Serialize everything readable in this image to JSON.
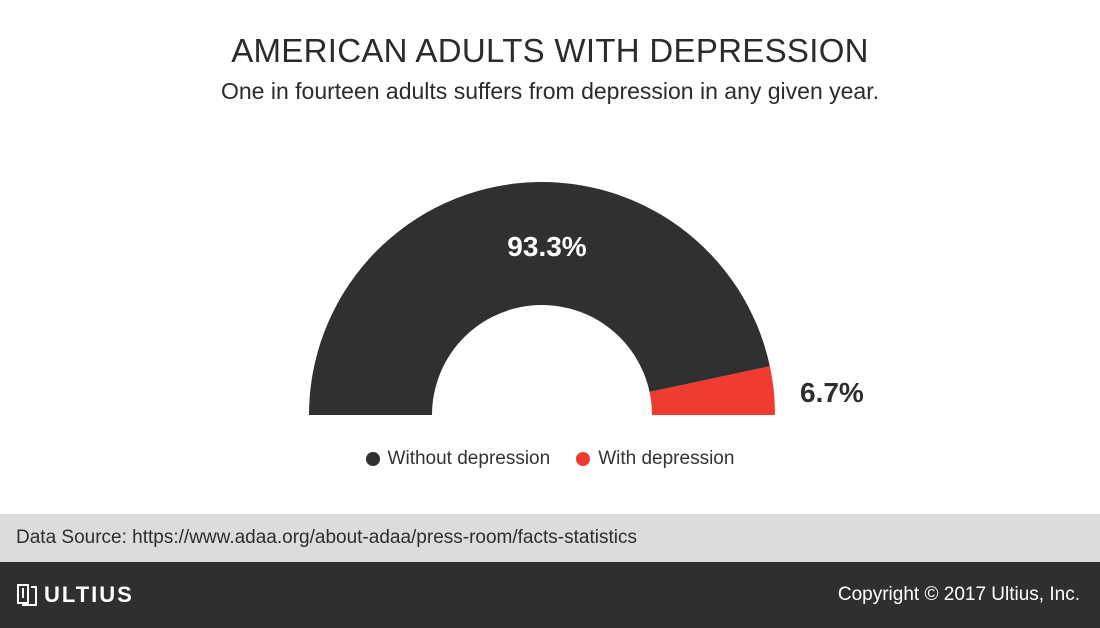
{
  "header": {
    "title": "AMERICAN ADULTS WITH DEPRESSION",
    "subtitle": "One in fourteen adults suffers from depression in any given year."
  },
  "chart_data": {
    "type": "pie",
    "variant": "half-donut",
    "title": "AMERICAN ADULTS WITH DEPRESSION",
    "subtitle": "One in fourteen adults suffers from depression in any given year.",
    "slices": [
      {
        "name": "Without depression",
        "value": 93.3,
        "label": "93.3%",
        "color": "#303030"
      },
      {
        "name": "With depression",
        "value": 6.7,
        "label": "6.7%",
        "color": "#f13a30"
      }
    ],
    "legend_position": "bottom"
  },
  "source": {
    "text": "Data Source: https://www.adaa.org/about-adaa/press-room/facts-statistics"
  },
  "footer": {
    "logo_text": "ULTIUS",
    "logo_icon": "ultius-logo-icon",
    "copyright": "Copyright © 2017 Ultius, Inc."
  }
}
